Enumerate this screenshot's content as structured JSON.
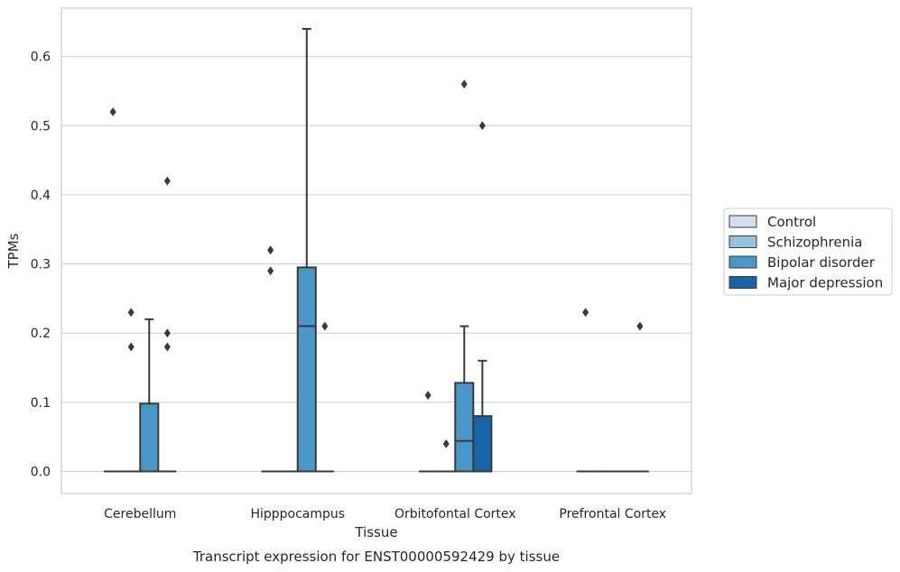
{
  "chart_data": {
    "type": "box",
    "caption": "Transcript expression for ENST00000592429 by tissue",
    "xlabel": "Tissue",
    "ylabel": "TPMs",
    "ylim": [
      -0.032,
      0.67
    ],
    "yticks": [
      0.0,
      0.1,
      0.2,
      0.3,
      0.4,
      0.5,
      0.6
    ],
    "ytick_labels": [
      "0.0",
      "0.1",
      "0.2",
      "0.3",
      "0.4",
      "0.5",
      "0.6"
    ],
    "grid": "horizontal",
    "legend_position": "right",
    "categories": [
      "Cerebellum",
      "Hipppocampus",
      "Orbitofontal Cortex",
      "Prefrontal Cortex"
    ],
    "series": [
      {
        "name": "Control",
        "color": "#d0e1f2",
        "boxes": [
          {
            "q1": 0.0,
            "median": 0.0,
            "q3": 0.0,
            "whislo": 0.0,
            "whishi": 0.0,
            "fliers": [
              0.52
            ]
          },
          {
            "q1": 0.0,
            "median": 0.0,
            "q3": 0.0,
            "whislo": 0.0,
            "whishi": 0.0,
            "fliers": [
              0.32,
              0.29
            ]
          },
          {
            "q1": 0.0,
            "median": 0.0,
            "q3": 0.0,
            "whislo": 0.0,
            "whishi": 0.0,
            "fliers": [
              0.11
            ]
          },
          {
            "q1": 0.0,
            "median": 0.0,
            "q3": 0.0,
            "whislo": 0.0,
            "whishi": 0.0,
            "fliers": [
              0.23
            ]
          }
        ]
      },
      {
        "name": "Schizophrenia",
        "color": "#94c4df",
        "boxes": [
          {
            "q1": 0.0,
            "median": 0.0,
            "q3": 0.0,
            "whislo": 0.0,
            "whishi": 0.0,
            "fliers": [
              0.23,
              0.18
            ]
          },
          {
            "q1": 0.0,
            "median": 0.0,
            "q3": 0.0,
            "whislo": 0.0,
            "whishi": 0.0,
            "fliers": []
          },
          {
            "q1": 0.0,
            "median": 0.0,
            "q3": 0.0,
            "whislo": 0.0,
            "whishi": 0.0,
            "fliers": [
              0.04
            ]
          },
          {
            "q1": 0.0,
            "median": 0.0,
            "q3": 0.0,
            "whislo": 0.0,
            "whishi": 0.0,
            "fliers": []
          }
        ]
      },
      {
        "name": "Bipolar disorder",
        "color": "#4a98c9",
        "boxes": [
          {
            "q1": 0.0,
            "median": 0.0,
            "q3": 0.098,
            "whislo": 0.0,
            "whishi": 0.22,
            "fliers": []
          },
          {
            "q1": 0.0,
            "median": 0.21,
            "q3": 0.295,
            "whislo": 0.0,
            "whishi": 0.64,
            "fliers": []
          },
          {
            "q1": 0.0,
            "median": 0.044,
            "q3": 0.128,
            "whislo": 0.0,
            "whishi": 0.21,
            "fliers": [
              0.56
            ]
          },
          {
            "q1": 0.0,
            "median": 0.0,
            "q3": 0.0,
            "whislo": 0.0,
            "whishi": 0.0,
            "fliers": []
          }
        ]
      },
      {
        "name": "Major depression",
        "color": "#1764ab",
        "boxes": [
          {
            "q1": 0.0,
            "median": 0.0,
            "q3": 0.0,
            "whislo": 0.0,
            "whishi": 0.0,
            "fliers": [
              0.42,
              0.2,
              0.18
            ]
          },
          {
            "q1": 0.0,
            "median": 0.0,
            "q3": 0.0,
            "whislo": 0.0,
            "whishi": 0.0,
            "fliers": [
              0.21
            ]
          },
          {
            "q1": 0.0,
            "median": 0.0,
            "q3": 0.08,
            "whislo": 0.0,
            "whishi": 0.16,
            "fliers": [
              0.5
            ]
          },
          {
            "q1": 0.0,
            "median": 0.0,
            "q3": 0.0,
            "whislo": 0.0,
            "whishi": 0.0,
            "fliers": [
              0.21
            ]
          }
        ]
      }
    ]
  }
}
